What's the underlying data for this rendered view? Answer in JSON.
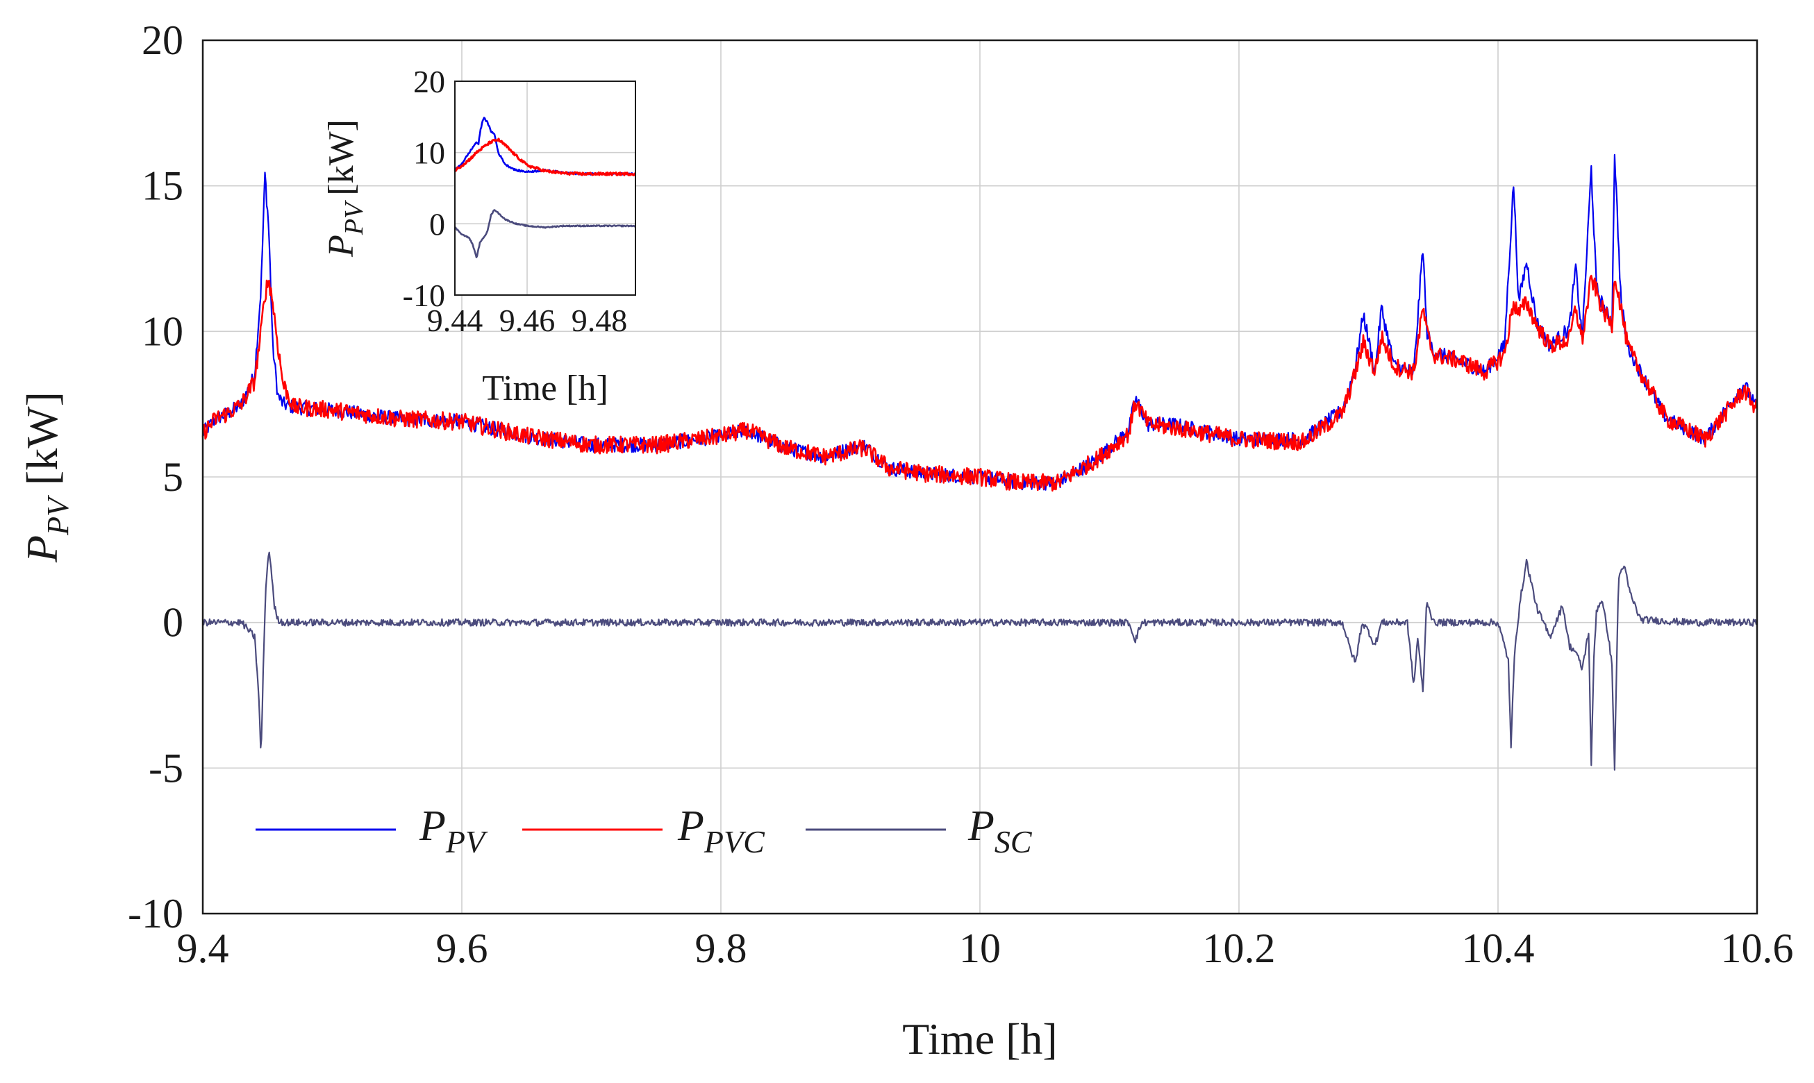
{
  "chart_data": [
    {
      "type": "line",
      "title": "",
      "xlabel": "Time [h]",
      "ylabel": {
        "main": "P",
        "sub": "PV",
        "unit": "[kW]"
      },
      "xlim": [
        9.4,
        10.6
      ],
      "ylim": [
        -10,
        20
      ],
      "xticks": [
        9.4,
        9.6,
        9.8,
        10,
        10.2,
        10.4,
        10.6
      ],
      "xtick_labels": [
        "9.4",
        "9.6",
        "9.8",
        "10",
        "10.2",
        "10.4",
        "10.6"
      ],
      "yticks": [
        -10,
        -5,
        0,
        5,
        10,
        15,
        20
      ],
      "ytick_labels": [
        "-10",
        "-5",
        "0",
        "5",
        "10",
        "15",
        "20"
      ],
      "grid": true,
      "legend_position": "bottom-left",
      "series": [
        {
          "name": "P_PV",
          "legend_main": "P",
          "legend_sub": "PV",
          "color": "#0000ee",
          "x": [
            9.4,
            9.41,
            9.42,
            9.43,
            9.44,
            9.445,
            9.448,
            9.451,
            9.454,
            9.458,
            9.462,
            9.47,
            9.5,
            9.55,
            9.6,
            9.65,
            9.7,
            9.75,
            9.8,
            9.82,
            9.85,
            9.88,
            9.91,
            9.93,
            9.96,
            10.0,
            10.03,
            10.06,
            10.09,
            10.115,
            10.12,
            10.13,
            10.15,
            10.2,
            10.25,
            10.28,
            10.29,
            10.296,
            10.305,
            10.31,
            10.32,
            10.335,
            10.342,
            10.345,
            10.35,
            10.37,
            10.39,
            10.405,
            10.412,
            10.416,
            10.422,
            10.43,
            10.44,
            10.455,
            10.46,
            10.465,
            10.472,
            10.476,
            10.48,
            10.488,
            10.49,
            10.495,
            10.5,
            10.51,
            10.53,
            10.56,
            10.59,
            10.6
          ],
          "y": [
            6.5,
            7.0,
            7.2,
            7.5,
            8.5,
            11.5,
            15.4,
            13.5,
            9.5,
            7.8,
            7.5,
            7.4,
            7.3,
            7.0,
            6.9,
            6.4,
            6.1,
            6.1,
            6.4,
            6.6,
            6.0,
            5.7,
            6.1,
            5.3,
            5.1,
            5.0,
            4.8,
            4.8,
            5.6,
            6.6,
            7.7,
            6.8,
            6.8,
            6.3,
            6.3,
            7.3,
            8.8,
            10.6,
            8.6,
            10.8,
            8.8,
            8.6,
            12.9,
            10.0,
            9.3,
            9.0,
            8.6,
            9.5,
            15.1,
            11.0,
            12.4,
            10.3,
            9.5,
            10.1,
            12.2,
            9.7,
            15.6,
            11.5,
            11.0,
            10.2,
            16.2,
            11.0,
            9.5,
            8.6,
            7.0,
            6.3,
            8.2,
            7.3
          ]
        },
        {
          "name": "P_PVC",
          "legend_main": "P",
          "legend_sub": "PVC",
          "color": "#ff0000",
          "x": [
            9.4,
            9.41,
            9.42,
            9.43,
            9.44,
            9.445,
            9.448,
            9.451,
            9.454,
            9.458,
            9.462,
            9.47,
            9.5,
            9.55,
            9.6,
            9.65,
            9.7,
            9.75,
            9.8,
            9.82,
            9.85,
            9.88,
            9.91,
            9.93,
            9.96,
            10.0,
            10.03,
            10.06,
            10.09,
            10.115,
            10.12,
            10.13,
            10.15,
            10.2,
            10.25,
            10.28,
            10.29,
            10.296,
            10.305,
            10.31,
            10.32,
            10.335,
            10.342,
            10.345,
            10.35,
            10.37,
            10.39,
            10.405,
            10.412,
            10.416,
            10.422,
            10.43,
            10.44,
            10.455,
            10.46,
            10.465,
            10.472,
            10.476,
            10.48,
            10.488,
            10.49,
            10.495,
            10.5,
            10.51,
            10.53,
            10.56,
            10.59,
            10.6
          ],
          "y": [
            6.5,
            7.0,
            7.2,
            7.5,
            8.3,
            10.0,
            11.3,
            11.8,
            11.0,
            9.5,
            8.2,
            7.4,
            7.3,
            7.0,
            6.9,
            6.4,
            6.1,
            6.1,
            6.4,
            6.6,
            6.0,
            5.7,
            6.0,
            5.3,
            5.1,
            5.0,
            4.8,
            4.8,
            5.6,
            6.5,
            7.6,
            6.8,
            6.7,
            6.3,
            6.2,
            7.2,
            8.6,
            9.6,
            8.6,
            9.8,
            8.8,
            8.6,
            10.8,
            10.0,
            9.2,
            9.0,
            8.6,
            9.2,
            11.0,
            10.6,
            11.0,
            10.2,
            9.5,
            9.7,
            10.8,
            9.7,
            11.8,
            11.4,
            10.8,
            10.2,
            12.0,
            10.8,
            9.5,
            8.6,
            7.0,
            6.3,
            8.0,
            7.3
          ]
        },
        {
          "name": "P_SC",
          "legend_main": "P",
          "legend_sub": "SC",
          "color": "#4b4b7d",
          "x": [
            9.4,
            9.43,
            9.44,
            9.443,
            9.445,
            9.447,
            9.449,
            9.451,
            9.453,
            9.455,
            9.458,
            9.462,
            9.47,
            9.6,
            9.8,
            10.0,
            10.115,
            10.12,
            10.125,
            10.2,
            10.28,
            10.285,
            10.29,
            10.295,
            10.3,
            10.305,
            10.31,
            10.33,
            10.335,
            10.338,
            10.342,
            10.345,
            10.35,
            10.37,
            10.4,
            10.408,
            10.41,
            10.413,
            10.418,
            10.422,
            10.425,
            10.43,
            10.44,
            10.45,
            10.455,
            10.46,
            10.465,
            10.47,
            10.472,
            10.474,
            10.476,
            10.48,
            10.485,
            10.488,
            10.49,
            10.493,
            10.497,
            10.502,
            10.51,
            10.55,
            10.6
          ],
          "y": [
            0.0,
            0.0,
            -0.5,
            -2.3,
            -4.7,
            -1.0,
            1.5,
            2.5,
            1.8,
            0.6,
            0.1,
            0.0,
            0.0,
            0.0,
            0.0,
            0.0,
            0.0,
            -0.6,
            0.0,
            0.0,
            0.0,
            -0.8,
            -1.4,
            0.0,
            -0.3,
            -0.8,
            0.0,
            0.0,
            -2.2,
            -0.5,
            -2.4,
            0.8,
            0.0,
            0.0,
            0.0,
            -1.3,
            -4.3,
            -0.8,
            1.0,
            2.1,
            1.5,
            0.5,
            -0.5,
            0.6,
            -0.8,
            -1.0,
            -1.6,
            -0.3,
            -5.0,
            -1.2,
            0.4,
            0.8,
            -0.4,
            -1.5,
            -5.0,
            1.5,
            2.0,
            1.0,
            0.1,
            0.0,
            0.0
          ]
        }
      ]
    },
    {
      "type": "line",
      "title": "",
      "xlabel": "Time [h]",
      "ylabel": {
        "main": "P",
        "sub": "PV",
        "unit": "[kW]"
      },
      "xlim": [
        9.44,
        9.49
      ],
      "ylim": [
        -10,
        20
      ],
      "xticks": [
        9.44,
        9.46,
        9.48
      ],
      "xtick_labels": [
        "9.44",
        "9.46",
        "9.48"
      ],
      "yticks": [
        -10,
        0,
        10,
        20
      ],
      "ytick_labels": [
        "-10",
        "0",
        "10",
        "20"
      ],
      "grid": true,
      "series": [
        {
          "name": "P_PV",
          "color": "#0000ee",
          "x": [
            9.44,
            9.442,
            9.444,
            9.446,
            9.4465,
            9.447,
            9.448,
            9.449,
            9.45,
            9.451,
            9.452,
            9.454,
            9.457,
            9.46,
            9.465,
            9.47,
            9.475,
            9.48,
            9.485,
            9.49
          ],
          "y": [
            7.5,
            8.5,
            10.0,
            11.5,
            11.0,
            13.0,
            15.0,
            14.2,
            13.0,
            12.5,
            10.0,
            8.3,
            7.5,
            7.3,
            7.5,
            7.2,
            7.0,
            7.0,
            7.0,
            7.0
          ]
        },
        {
          "name": "P_PVC",
          "color": "#ff0000",
          "x": [
            9.44,
            9.442,
            9.444,
            9.446,
            9.448,
            9.45,
            9.452,
            9.454,
            9.457,
            9.46,
            9.465,
            9.47,
            9.475,
            9.48,
            9.485,
            9.49
          ],
          "y": [
            7.5,
            8.2,
            9.0,
            10.0,
            10.8,
            11.5,
            11.8,
            11.0,
            9.5,
            8.2,
            7.4,
            7.1,
            7.0,
            7.0,
            7.0,
            7.0
          ]
        },
        {
          "name": "P_SC",
          "color": "#4b4b7d",
          "x": [
            9.44,
            9.442,
            9.444,
            9.445,
            9.446,
            9.447,
            9.448,
            9.449,
            9.45,
            9.451,
            9.452,
            9.454,
            9.457,
            9.46,
            9.465,
            9.47,
            9.48,
            9.49
          ],
          "y": [
            -0.5,
            -1.5,
            -2.0,
            -3.0,
            -4.8,
            -2.5,
            -2.0,
            -1.0,
            1.2,
            2.0,
            1.5,
            0.6,
            0.0,
            -0.3,
            -0.5,
            -0.3,
            -0.3,
            -0.3
          ]
        }
      ]
    }
  ]
}
